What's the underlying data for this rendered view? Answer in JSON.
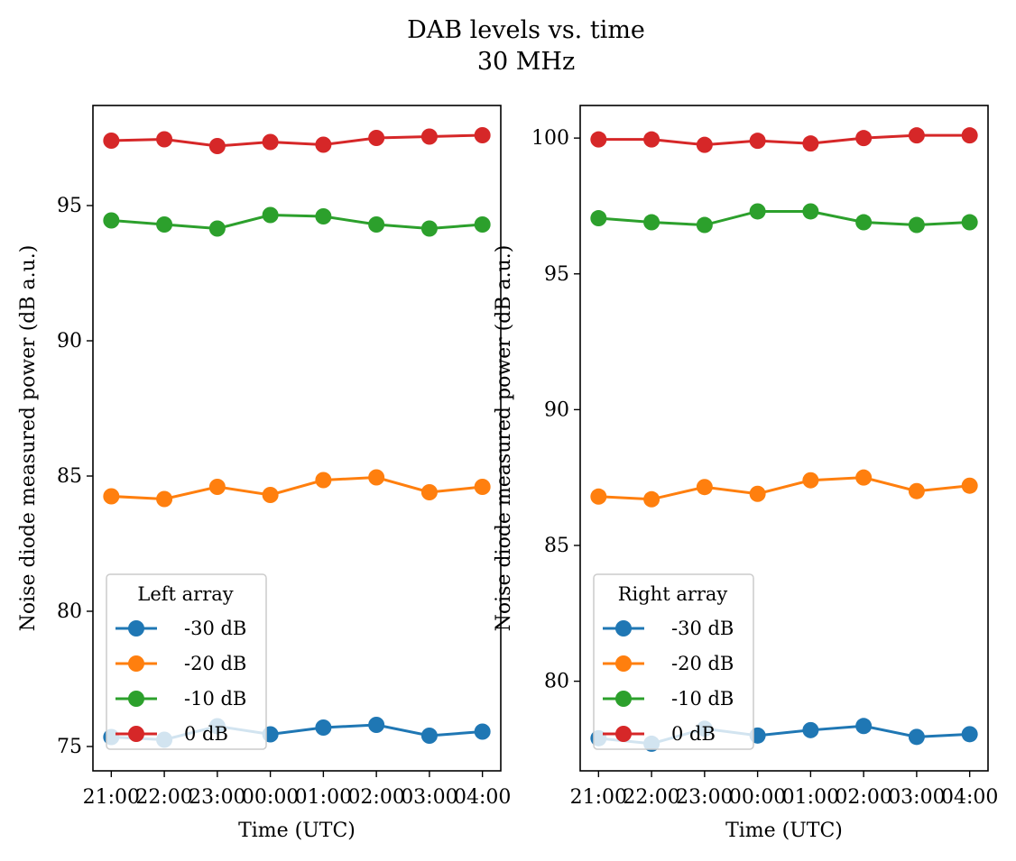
{
  "figure": {
    "title_line1": "DAB levels vs. time",
    "title_line2": "30 MHz"
  },
  "series_colors": {
    "-30 dB": "#1f77b4",
    "-20 dB": "#ff7f0e",
    "-10 dB": "#2ca02c",
    "0 dB": "#d62728"
  },
  "chart_data": [
    {
      "type": "line",
      "title": "",
      "xlabel": "Time (UTC)",
      "ylabel": "Noise diode measured power (dB a.u.)",
      "x": [
        "21:00",
        "22:00",
        "23:00",
        "00:00",
        "01:00",
        "02:00",
        "03:00",
        "04:00"
      ],
      "ylim": [
        74.1,
        98.7
      ],
      "yticks": [
        75,
        80,
        85,
        90,
        95
      ],
      "legend_title": "Left array",
      "legend_position": "lower-left",
      "series": [
        {
          "name": "-30 dB",
          "color": "#1f77b4",
          "values": [
            75.35,
            75.25,
            75.75,
            75.45,
            75.7,
            75.8,
            75.4,
            75.55
          ]
        },
        {
          "name": "-20 dB",
          "color": "#ff7f0e",
          "values": [
            84.25,
            84.15,
            84.6,
            84.3,
            84.85,
            84.95,
            84.4,
            84.6
          ]
        },
        {
          "name": "-10 dB",
          "color": "#2ca02c",
          "values": [
            94.45,
            94.3,
            94.15,
            94.65,
            94.6,
            94.3,
            94.15,
            94.3
          ]
        },
        {
          "name": "0 dB",
          "color": "#d62728",
          "values": [
            97.4,
            97.45,
            97.2,
            97.35,
            97.25,
            97.5,
            97.55,
            97.6
          ]
        }
      ]
    },
    {
      "type": "line",
      "title": "",
      "xlabel": "Time (UTC)",
      "ylabel": "Noise diode measured power (dB a.u.)",
      "x": [
        "21:00",
        "22:00",
        "23:00",
        "00:00",
        "01:00",
        "02:00",
        "03:00",
        "04:00"
      ],
      "ylim": [
        76.7,
        101.2
      ],
      "yticks": [
        80,
        85,
        90,
        95,
        100
      ],
      "legend_title": "Right array",
      "legend_position": "lower-left",
      "series": [
        {
          "name": "-30 dB",
          "color": "#1f77b4",
          "values": [
            77.9,
            77.7,
            78.25,
            78.0,
            78.2,
            78.35,
            77.95,
            78.05
          ]
        },
        {
          "name": "-20 dB",
          "color": "#ff7f0e",
          "values": [
            86.8,
            86.7,
            87.15,
            86.9,
            87.4,
            87.5,
            87.0,
            87.2
          ]
        },
        {
          "name": "-10 dB",
          "color": "#2ca02c",
          "values": [
            97.05,
            96.9,
            96.8,
            97.3,
            97.3,
            96.9,
            96.8,
            96.9
          ]
        },
        {
          "name": "0 dB",
          "color": "#d62728",
          "values": [
            99.95,
            99.95,
            99.75,
            99.9,
            99.8,
            100.0,
            100.1,
            100.1
          ]
        }
      ]
    }
  ]
}
